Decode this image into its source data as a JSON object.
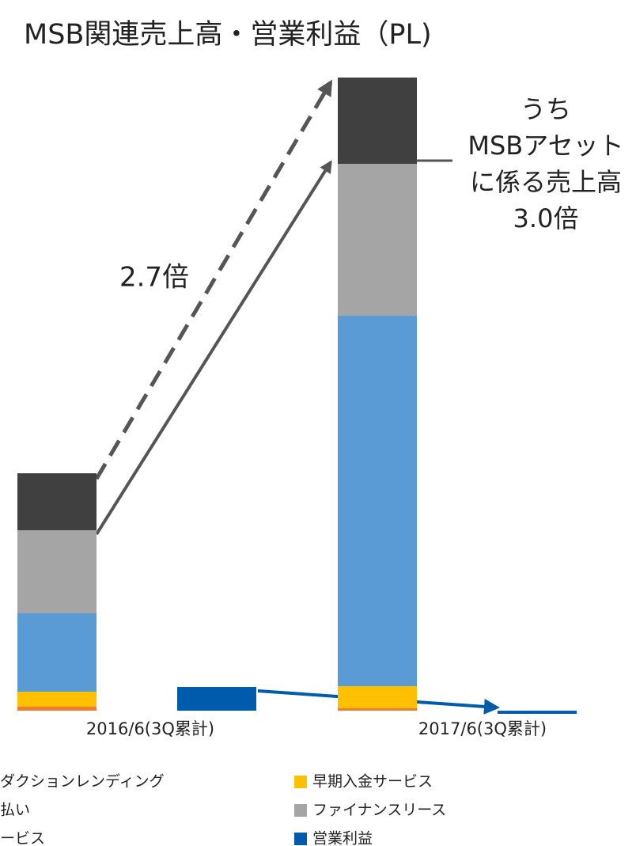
{
  "chart_data": {
    "type": "stacked_bar",
    "title": "MSB関連売上高・営業利益（PL)",
    "categories": [
      "2016/6(3Q累計)",
      "2017/6(3Q累計)"
    ],
    "series": [
      {
        "name": "払い",
        "color": "#ed7d31",
        "values": [
          5,
          3
        ]
      },
      {
        "name": "早期入金サービス",
        "color": "#ffc000",
        "values": [
          19,
          28
        ]
      },
      {
        "name": "ダクションレンディング",
        "color": "#5b9bd5",
        "values": [
          99,
          468
        ]
      },
      {
        "name": "ファイナンスリース",
        "color": "#a5a5a5",
        "values": [
          105,
          192
        ]
      },
      {
        "name": "ービス",
        "color": "#404040",
        "values": [
          72,
          109
        ]
      },
      {
        "name": "営業利益",
        "color": "#005bac",
        "values": [
          30,
          -4
        ],
        "stacked": false
      }
    ],
    "annotations": [
      "2.7倍",
      [
        "うち",
        "MSBアセット",
        "に係る売上高",
        "3.0倍"
      ]
    ]
  }
}
